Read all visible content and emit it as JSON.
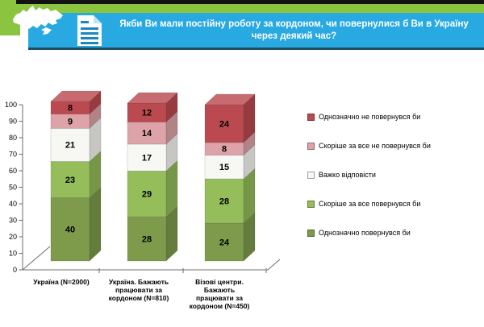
{
  "header": {
    "title_lines": [
      "Якби Ви мали постійну роботу за кордоном, чи повернулися б Ви в Україну",
      "через деякий час?"
    ],
    "icons": [
      "ukraine-map-icon",
      "document-icon"
    ],
    "colors": {
      "band_green": "#8bc53f",
      "banner_blue": "#29a9e1",
      "banner_edge": "#1d4e68",
      "top_strip": "#121212",
      "title_text": "#ffffff"
    }
  },
  "chart_data": {
    "type": "bar",
    "stacked": true,
    "effect": "3d",
    "title": "",
    "xlabel": "",
    "ylabel": "",
    "ylim": [
      0,
      100
    ],
    "ytick_step": 10,
    "ytick_labels": [
      "0",
      "10",
      "20",
      "30",
      "40",
      "50",
      "60",
      "70",
      "80",
      "90",
      "100"
    ],
    "grid": false,
    "value_labels_shown": true,
    "categories": [
      "Україна (N=2000)",
      "Україна. Бажають працювати за кордоном (N=810)",
      "Візові центри. Бажають працювати за кордоном (N=450)"
    ],
    "category_label_lines": [
      [
        "Україна (N=2000)"
      ],
      [
        "Україна. Бажають",
        "працювати за",
        "кордоном (N=810)"
      ],
      [
        "Візові центри.",
        "Бажають",
        "працювати за",
        "кордоном (N=450)"
      ]
    ],
    "stack_order": "bottom_to_top",
    "series": [
      {
        "name": "Однозначно повернувся би",
        "values": [
          40,
          28,
          24
        ],
        "color": "#7d9b4b"
      },
      {
        "name": "Скоріше за все повернувся би",
        "values": [
          23,
          29,
          28
        ],
        "color": "#95bd5a"
      },
      {
        "name": "Важко відповісти",
        "values": [
          21,
          17,
          15
        ],
        "color": "#f7f7f4"
      },
      {
        "name": "Скоріше за все не повернувся би",
        "values": [
          9,
          14,
          8
        ],
        "color": "#dda3a8"
      },
      {
        "name": "Однозначно не повернувся би",
        "values": [
          8,
          12,
          24
        ],
        "color": "#bb4a50"
      }
    ],
    "legend_position": "right",
    "legend_top_to_bottom": [
      "Однозначно не повернувся би",
      "Скоріше за все не повернувся би",
      "Важко відповісти",
      "Скоріше за все повернувся би",
      "Однозначно повернувся би"
    ]
  }
}
